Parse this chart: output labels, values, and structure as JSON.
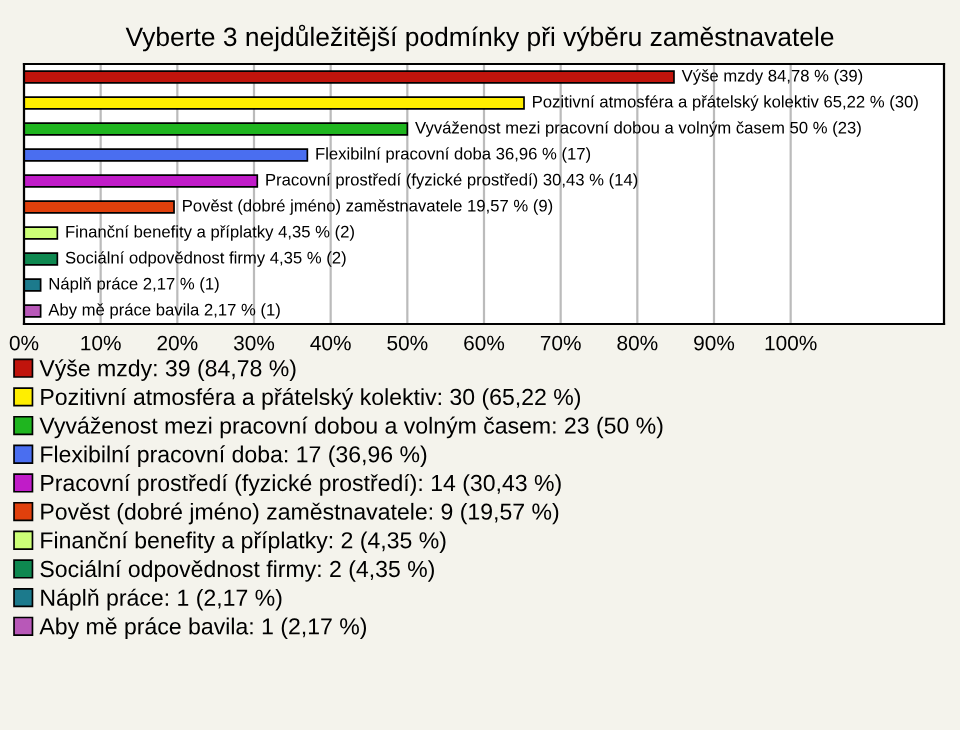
{
  "chart_data": {
    "type": "bar",
    "orientation": "horizontal",
    "title": "Vyberte 3 nejdůležitější podmínky při výběru zaměstnavatele",
    "categories": [
      null,
      null,
      null,
      null,
      null,
      null,
      null,
      null,
      null,
      null
    ],
    "series": [
      {
        "name": "Výše mzdy: 39 (84,78 %)",
        "color": "#c0140c",
        "values": [
          84.78,
          null,
          null,
          null,
          null,
          null,
          null,
          null,
          null,
          null
        ],
        "value_labels": [
          "Výše mzdy 84,78 % (39)",
          null,
          null,
          null,
          null,
          null,
          null,
          null,
          null,
          null
        ]
      },
      {
        "name": "Pozitivní atmosféra a přátelský kolektiv: 30 (65,22 %)",
        "color": "#ffee00",
        "values": [
          null,
          65.22,
          null,
          null,
          null,
          null,
          null,
          null,
          null,
          null
        ],
        "value_labels": [
          null,
          "Pozitivní atmosféra a přátelský kolektiv 65,22 % (30)",
          null,
          null,
          null,
          null,
          null,
          null,
          null,
          null
        ]
      },
      {
        "name": "Vyváženost mezi pracovní dobou a volným časem: 23 (50 %)",
        "color": "#1fb51f",
        "values": [
          null,
          null,
          50,
          null,
          null,
          null,
          null,
          null,
          null,
          null
        ],
        "value_labels": [
          null,
          null,
          "Vyváženost mezi pracovní dobou a volným časem 50 % (23)",
          null,
          null,
          null,
          null,
          null,
          null,
          null
        ]
      },
      {
        "name": "Flexibilní pracovní doba: 17 (36,96 %)",
        "color": "#4a6ef0",
        "values": [
          null,
          null,
          null,
          36.96,
          null,
          null,
          null,
          null,
          null,
          null
        ],
        "value_labels": [
          null,
          null,
          null,
          "Flexibilní pracovní doba 36,96 % (17)",
          null,
          null,
          null,
          null,
          null,
          null
        ]
      },
      {
        "name": "Pracovní prostředí (fyzické prostředí): 14 (30,43 %)",
        "color": "#c01cc8",
        "values": [
          null,
          null,
          null,
          null,
          30.43,
          null,
          null,
          null,
          null,
          null
        ],
        "value_labels": [
          null,
          null,
          null,
          null,
          "Pracovní prostředí (fyzické prostředí) 30,43 % (14)",
          null,
          null,
          null,
          null,
          null
        ]
      },
      {
        "name": "Pověst (dobré jméno) zaměstnavatele: 9 (19,57 %)",
        "color": "#e0400c",
        "values": [
          null,
          null,
          null,
          null,
          null,
          19.57,
          null,
          null,
          null,
          null
        ],
        "value_labels": [
          null,
          null,
          null,
          null,
          null,
          "Pověst (dobré jméno) zaměstnavatele 19,57 % (9)",
          null,
          null,
          null,
          null
        ]
      },
      {
        "name": "Finanční benefity a příplatky: 2 (4,35 %)",
        "color": "#ccff77",
        "values": [
          null,
          null,
          null,
          null,
          null,
          null,
          4.35,
          null,
          null,
          null
        ],
        "value_labels": [
          null,
          null,
          null,
          null,
          null,
          null,
          "Finanční benefity a příplatky 4,35 % (2)",
          null,
          null,
          null
        ]
      },
      {
        "name": "Sociální odpovědnost firmy: 2 (4,35 %)",
        "color": "#0e8850",
        "values": [
          null,
          null,
          null,
          null,
          null,
          null,
          null,
          4.35,
          null,
          null
        ],
        "value_labels": [
          null,
          null,
          null,
          null,
          null,
          null,
          null,
          "Sociální odpovědnost firmy 4,35 % (2)",
          null,
          null
        ]
      },
      {
        "name": "Náplň práce: 1 (2,17 %)",
        "color": "#1c7a8c",
        "values": [
          null,
          null,
          null,
          null,
          null,
          null,
          null,
          null,
          2.17,
          null
        ],
        "value_labels": [
          null,
          null,
          null,
          null,
          null,
          null,
          null,
          null,
          "Náplň práce 2,17 % (1)",
          null
        ]
      },
      {
        "name": "Aby mě práce bavila: 1 (2,17 %)",
        "color": "#b858b8",
        "values": [
          null,
          null,
          null,
          null,
          null,
          null,
          null,
          null,
          null,
          2.17
        ],
        "value_labels": [
          null,
          null,
          null,
          null,
          null,
          null,
          null,
          null,
          null,
          "Aby mě práce bavila 2,17 % (1)"
        ]
      }
    ],
    "xlim": [
      0,
      120
    ],
    "xticks": [
      {
        "value": 0,
        "label": "0%"
      },
      {
        "value": 10,
        "label": "10%"
      },
      {
        "value": 20,
        "label": "20%"
      },
      {
        "value": 30,
        "label": "30%"
      },
      {
        "value": 40,
        "label": "40%"
      },
      {
        "value": 50,
        "label": "50%"
      },
      {
        "value": 60,
        "label": "60%"
      },
      {
        "value": 70,
        "label": "70%"
      },
      {
        "value": 80,
        "label": "80%"
      },
      {
        "value": 90,
        "label": "90%"
      },
      {
        "value": 100,
        "label": "100%"
      }
    ],
    "grid": "x",
    "legend": "bottom"
  }
}
